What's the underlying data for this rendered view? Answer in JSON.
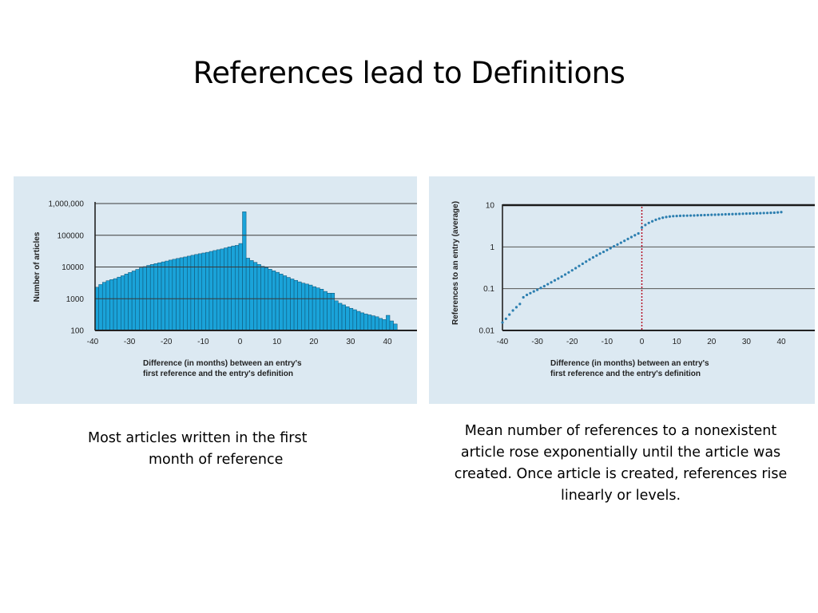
{
  "slide": {
    "title": "References lead to Definitions",
    "caption_left": [
      "Most articles written in the first",
      "month of reference"
    ],
    "caption_right": "Mean number of references to a nonexistent article rose exponentially until the article was created. Once article is created, references rise linearly or levels."
  },
  "colors": {
    "panel_bg": "#dce9f2",
    "bar_fill": "#1aa3d9",
    "dot": "#2d7fb0",
    "zero_line": "#b3001b"
  },
  "chart_data": [
    {
      "type": "bar",
      "scale": "log",
      "ylabel": "Number of articles",
      "xlabel_lines": [
        "Difference (in months) between an entry's",
        "first reference and the entry's definition"
      ],
      "y_ticks": [
        100,
        1000,
        10000,
        100000,
        1000000
      ],
      "y_tick_labels": [
        "100",
        "1000",
        "10000",
        "100000",
        "1,000,000"
      ],
      "x_ticks": [
        -40,
        -30,
        -20,
        -10,
        0,
        10,
        20,
        30,
        40
      ],
      "x_tick_labels": [
        "-40",
        "-30",
        "-20",
        "-10",
        "0",
        "10",
        "20",
        "30",
        "40"
      ],
      "ylim": [
        100,
        1000000
      ],
      "x": [
        -40,
        -39,
        -38,
        -37,
        -36,
        -35,
        -34,
        -33,
        -32,
        -31,
        -30,
        -29,
        -28,
        -27,
        -26,
        -25,
        -24,
        -23,
        -22,
        -21,
        -20,
        -19,
        -18,
        -17,
        -16,
        -15,
        -14,
        -13,
        -12,
        -11,
        -10,
        -9,
        -8,
        -7,
        -6,
        -5,
        -4,
        -3,
        -2,
        -1,
        0,
        1,
        2,
        3,
        4,
        5,
        6,
        7,
        8,
        9,
        10,
        11,
        12,
        13,
        14,
        15,
        16,
        17,
        18,
        19,
        20,
        21,
        22,
        23,
        24,
        25,
        26,
        27,
        28,
        29,
        30,
        31,
        32,
        33,
        34,
        35,
        36,
        37,
        38,
        39,
        40,
        41
      ],
      "values": [
        2300,
        2800,
        3300,
        3700,
        4000,
        4300,
        4800,
        5300,
        6000,
        6700,
        7500,
        8400,
        9400,
        10300,
        11200,
        12000,
        12800,
        13600,
        14500,
        15400,
        16500,
        17500,
        18600,
        19600,
        20700,
        22000,
        23400,
        24800,
        26200,
        27600,
        29000,
        31000,
        33000,
        35000,
        37000,
        40000,
        43000,
        46000,
        48000,
        55000,
        550000,
        19000,
        16000,
        14000,
        12000,
        10500,
        9500,
        8500,
        7600,
        6800,
        6000,
        5300,
        4700,
        4200,
        3800,
        3400,
        3100,
        2900,
        2700,
        2400,
        2200,
        2000,
        1700,
        1500,
        1500,
        860,
        720,
        640,
        560,
        500,
        450,
        400,
        360,
        330,
        310,
        290,
        270,
        240,
        220,
        300,
        200,
        160
      ]
    },
    {
      "type": "scatter",
      "scale": "log",
      "ylabel": "References to an entry (average)",
      "xlabel_lines": [
        "Difference (in months) between an entry's",
        "first reference and the entry's definition"
      ],
      "y_ticks": [
        0.01,
        0.1,
        1,
        10
      ],
      "y_tick_labels": [
        "0.01",
        "0.1",
        "1",
        "10"
      ],
      "x_ticks": [
        -40,
        -30,
        -20,
        -10,
        0,
        10,
        20,
        30,
        40
      ],
      "x_tick_labels": [
        "-40",
        "-30",
        "-20",
        "-10",
        "0",
        "10",
        "20",
        "30",
        "40"
      ],
      "ylim": [
        0.01,
        10
      ],
      "reference_line_x": 0,
      "x": [
        -40,
        -39,
        -38,
        -37,
        -36,
        -35,
        -34,
        -33,
        -32,
        -31,
        -30,
        -29,
        -28,
        -27,
        -26,
        -25,
        -24,
        -23,
        -22,
        -21,
        -20,
        -19,
        -18,
        -17,
        -16,
        -15,
        -14,
        -13,
        -12,
        -11,
        -10,
        -9,
        -8,
        -7,
        -6,
        -5,
        -4,
        -3,
        -2,
        -1,
        0,
        1,
        2,
        3,
        4,
        5,
        6,
        7,
        8,
        9,
        10,
        11,
        12,
        13,
        14,
        15,
        16,
        17,
        18,
        19,
        20,
        21,
        22,
        23,
        24,
        25,
        26,
        27,
        28,
        29,
        30,
        31,
        32,
        33,
        34,
        35,
        36,
        37,
        38,
        39,
        40
      ],
      "values": [
        0.0155,
        0.019,
        0.024,
        0.03,
        0.036,
        0.043,
        0.062,
        0.071,
        0.078,
        0.086,
        0.094,
        0.104,
        0.115,
        0.128,
        0.142,
        0.158,
        0.175,
        0.195,
        0.218,
        0.245,
        0.275,
        0.31,
        0.35,
        0.395,
        0.445,
        0.5,
        0.56,
        0.62,
        0.69,
        0.76,
        0.84,
        0.93,
        1.03,
        1.14,
        1.26,
        1.4,
        1.55,
        1.72,
        1.9,
        2.1,
        2.9,
        3.35,
        3.75,
        4.1,
        4.45,
        4.75,
        5.0,
        5.2,
        5.35,
        5.45,
        5.5,
        5.55,
        5.58,
        5.6,
        5.63,
        5.66,
        5.7,
        5.74,
        5.78,
        5.82,
        5.86,
        5.9,
        5.94,
        5.98,
        6.02,
        6.06,
        6.1,
        6.14,
        6.18,
        6.22,
        6.26,
        6.3,
        6.34,
        6.38,
        6.42,
        6.46,
        6.5,
        6.55,
        6.6,
        6.7,
        6.8
      ]
    }
  ]
}
